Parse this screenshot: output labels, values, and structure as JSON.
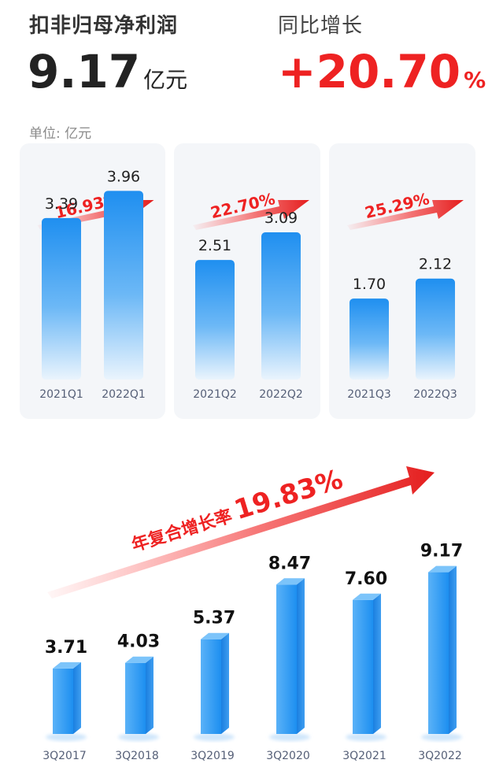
{
  "header": {
    "metric_label": "扣非归母净利润",
    "metric_value": "9.17",
    "metric_unit": "亿元",
    "growth_label": "同比增长",
    "growth_value": "+20.70",
    "growth_unit": "%",
    "unit_note": "单位: 亿元"
  },
  "colors": {
    "accent_red": "#ee2222",
    "bar_blue": "#1f8ff0",
    "panel_bg": "#f4f6f9"
  },
  "chart_data": [
    {
      "type": "bar",
      "categories": [
        "2021Q1",
        "2022Q1"
      ],
      "values": [
        3.39,
        3.96
      ],
      "value_labels": [
        "3.39",
        "3.96"
      ],
      "growth_label": "16.93%",
      "ylim": [
        0,
        5
      ]
    },
    {
      "type": "bar",
      "categories": [
        "2021Q2",
        "2022Q2"
      ],
      "values": [
        2.51,
        3.09
      ],
      "value_labels": [
        "2.51",
        "3.09"
      ],
      "growth_label": "22.70%",
      "ylim": [
        0,
        5
      ]
    },
    {
      "type": "bar",
      "categories": [
        "2021Q3",
        "2022Q3"
      ],
      "values": [
        1.7,
        2.12
      ],
      "value_labels": [
        "1.70",
        "2.12"
      ],
      "growth_label": "25.29%",
      "ylim": [
        0,
        5
      ]
    },
    {
      "type": "bar",
      "categories": [
        "3Q2017",
        "3Q2018",
        "3Q2019",
        "3Q2020",
        "3Q2021",
        "3Q2022"
      ],
      "values": [
        3.71,
        4.03,
        5.37,
        8.47,
        7.6,
        9.17
      ],
      "value_labels": [
        "3.71",
        "4.03",
        "5.37",
        "8.47",
        "7.60",
        "9.17"
      ],
      "annotation_text": "年复合增长率",
      "annotation_value": "19.83%",
      "ylim": [
        0,
        10
      ]
    }
  ]
}
